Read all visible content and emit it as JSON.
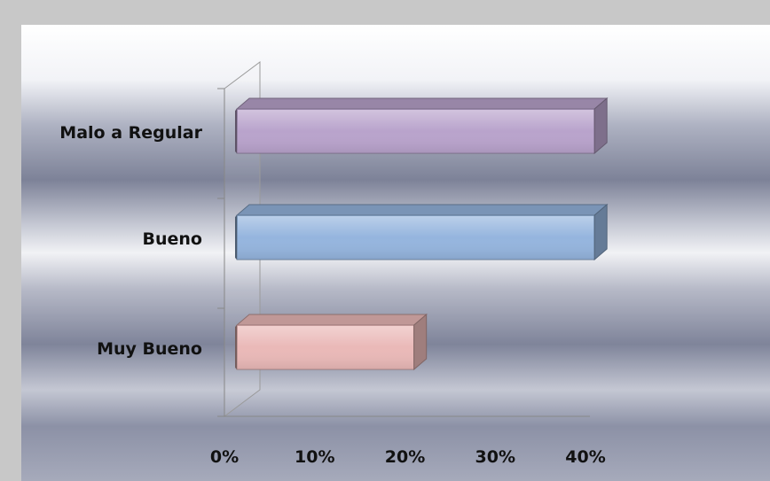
{
  "chart_data": {
    "type": "bar",
    "orientation": "horizontal",
    "three_d": true,
    "categories": [
      "Malo a Regular",
      "Bueno",
      "Muy Bueno"
    ],
    "values": [
      0.41,
      0.41,
      0.21
    ],
    "xlim": [
      0,
      0.4
    ],
    "x_ticks": [
      {
        "value": 0,
        "label": "0%"
      },
      {
        "value": 0.1,
        "label": "10%"
      },
      {
        "value": 0.2,
        "label": "20%"
      },
      {
        "value": 0.3,
        "label": "30%"
      },
      {
        "value": 0.4,
        "label": "40%"
      }
    ],
    "colors": [
      "#b9a3cc",
      "#95b5de",
      "#eab9b8"
    ],
    "grid": false,
    "legend": "none",
    "title": "",
    "xlabel": "",
    "ylabel": ""
  }
}
